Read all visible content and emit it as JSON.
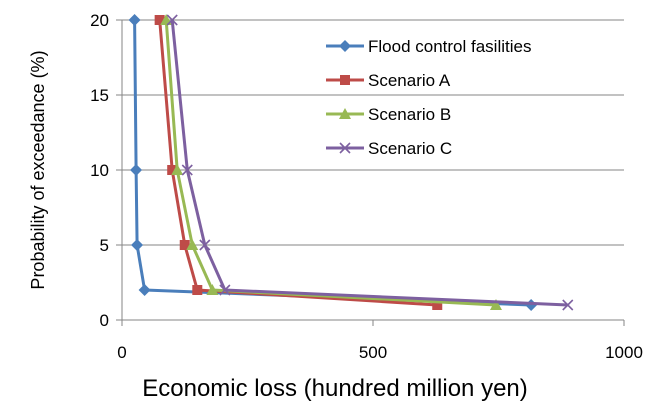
{
  "chart_data": {
    "type": "line",
    "title": "",
    "xlabel": "Economic loss (hundred million yen)",
    "ylabel": "Probability of exceedance (%)",
    "xlim": [
      0,
      1000
    ],
    "ylim": [
      0,
      20
    ],
    "x_ticks": [
      0,
      500,
      1000
    ],
    "y_ticks": [
      0,
      5,
      10,
      15,
      20
    ],
    "grid": "horizontal",
    "legend_position": "top-right",
    "series": [
      {
        "name": "Flood control fasilities",
        "color": "#4A7EBB",
        "marker": "diamond",
        "points": [
          [
            25,
            20
          ],
          [
            28,
            10
          ],
          [
            30,
            5
          ],
          [
            45,
            2
          ],
          [
            815,
            1
          ]
        ]
      },
      {
        "name": "Scenario A",
        "color": "#BE4B48",
        "marker": "square",
        "points": [
          [
            75,
            20
          ],
          [
            100,
            10
          ],
          [
            125,
            5
          ],
          [
            150,
            2
          ],
          [
            628,
            1
          ]
        ]
      },
      {
        "name": "Scenario B",
        "color": "#98B954",
        "marker": "triangle",
        "points": [
          [
            88,
            20
          ],
          [
            110,
            10
          ],
          [
            140,
            5
          ],
          [
            180,
            2
          ],
          [
            745,
            1
          ]
        ]
      },
      {
        "name": "Scenario C",
        "color": "#7D60A0",
        "marker": "x",
        "points": [
          [
            100,
            20
          ],
          [
            130,
            10
          ],
          [
            165,
            5
          ],
          [
            205,
            2
          ],
          [
            888,
            1
          ]
        ]
      }
    ]
  }
}
